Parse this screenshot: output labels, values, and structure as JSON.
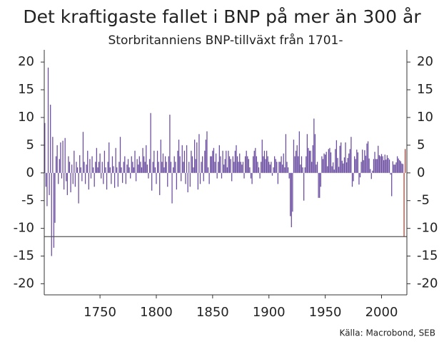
{
  "chart_data": {
    "type": "bar",
    "title": "Det kraftigaste fallet i BNP på mer än 300 år",
    "subtitle": "Storbritanniens BNP-tillväxt från 1701-",
    "source": "Källa: Macrobond, SEB",
    "series": [
      {
        "color": "#6a4ca0",
        "x": [
          1701,
          1702,
          1703,
          1704,
          1705,
          1706,
          1707,
          1708,
          1709,
          1710,
          1711,
          1712,
          1713,
          1714,
          1715,
          1716,
          1717,
          1718,
          1719,
          1720,
          1721,
          1722,
          1723,
          1724,
          1725,
          1726,
          1727,
          1728,
          1729,
          1730,
          1731,
          1732,
          1733,
          1734,
          1735,
          1736,
          1737,
          1738,
          1739,
          1740,
          1741,
          1742,
          1743,
          1744,
          1745,
          1746,
          1747,
          1748,
          1749,
          1750,
          1751,
          1752,
          1753,
          1754,
          1755,
          1756,
          1757,
          1758,
          1759,
          1760,
          1761,
          1762,
          1763,
          1764,
          1765,
          1766,
          1767,
          1768,
          1769,
          1770,
          1771,
          1772,
          1773,
          1774,
          1775,
          1776,
          1777,
          1778,
          1779,
          1780,
          1781,
          1782,
          1783,
          1784,
          1785,
          1786,
          1787,
          1788,
          1789,
          1790,
          1791,
          1792,
          1793,
          1794,
          1795,
          1796,
          1797,
          1798,
          1799,
          1800,
          1801,
          1802,
          1803,
          1804,
          1805,
          1806,
          1807,
          1808,
          1809,
          1810,
          1811,
          1812,
          1813,
          1814,
          1815,
          1816,
          1817,
          1818,
          1819,
          1820,
          1821,
          1822,
          1823,
          1824,
          1825,
          1826,
          1827,
          1828,
          1829,
          1830,
          1831,
          1832,
          1833,
          1834,
          1835,
          1836,
          1837,
          1838,
          1839,
          1840,
          1841,
          1842,
          1843,
          1844,
          1845,
          1846,
          1847,
          1848,
          1849,
          1850,
          1851,
          1852,
          1853,
          1854,
          1855,
          1856,
          1857,
          1858,
          1859,
          1860,
          1861,
          1862,
          1863,
          1864,
          1865,
          1866,
          1867,
          1868,
          1869,
          1870,
          1871,
          1872,
          1873,
          1874,
          1875,
          1876,
          1877,
          1878,
          1879,
          1880,
          1881,
          1882,
          1883,
          1884,
          1885,
          1886,
          1887,
          1888,
          1889,
          1890,
          1891,
          1892,
          1893,
          1894,
          1895,
          1896,
          1897,
          1898,
          1899,
          1900,
          1901,
          1902,
          1903,
          1904,
          1905,
          1906,
          1907,
          1908,
          1909,
          1910,
          1911,
          1912,
          1913,
          1914,
          1915,
          1916,
          1917,
          1918,
          1919,
          1920,
          1921,
          1922,
          1923,
          1924,
          1925,
          1926,
          1927,
          1928,
          1929,
          1930,
          1931,
          1932,
          1933,
          1934,
          1935,
          1936,
          1937,
          1938,
          1939,
          1940,
          1941,
          1942,
          1943,
          1944,
          1945,
          1946,
          1947,
          1948,
          1949,
          1950,
          1951,
          1952,
          1953,
          1954,
          1955,
          1956,
          1957,
          1958,
          1959,
          1960,
          1961,
          1962,
          1963,
          1964,
          1965,
          1966,
          1967,
          1968,
          1969,
          1970,
          1971,
          1972,
          1973,
          1974,
          1975,
          1976,
          1977,
          1978,
          1979,
          1980,
          1981,
          1982,
          1983,
          1984,
          1985,
          1986,
          1987,
          1988,
          1989,
          1990,
          1991,
          1992,
          1993,
          1994,
          1995,
          1996,
          1997,
          1998,
          1999,
          2000,
          2001,
          2002,
          2003,
          2004,
          2005,
          2006,
          2007,
          2008,
          2009,
          2010,
          2011,
          2012,
          2013,
          2014,
          2015,
          2016,
          2017,
          2018,
          2019
        ],
        "values": [
          9,
          -2.5,
          -6,
          19,
          -4,
          12.3,
          -15,
          6.5,
          -13.5,
          -9,
          3,
          5,
          -2,
          2.5,
          5.5,
          -1,
          5.8,
          -3,
          6.3,
          -1.5,
          -4,
          3,
          2,
          -3.5,
          1.5,
          -2,
          4,
          -2.5,
          2,
          1,
          -5.5,
          3.2,
          1,
          -1.5,
          7.4,
          2,
          -2,
          1.5,
          4,
          -3,
          2.5,
          -1,
          3,
          1,
          -2.5,
          2,
          4.5,
          1,
          2,
          3.5,
          -1,
          2,
          -2,
          4,
          1,
          -3,
          2,
          5.5,
          1,
          -2,
          3,
          1.2,
          -2.7,
          4.5,
          1,
          -2.5,
          2,
          6.5,
          1,
          -1.8,
          2,
          3,
          -2,
          1.5,
          2.5,
          1,
          -1,
          3,
          2,
          1,
          4,
          -1.5,
          2.5,
          1.5,
          3,
          2,
          1,
          4.5,
          3,
          2,
          5,
          1.5,
          -1,
          2.5,
          10.8,
          -3.2,
          2,
          4,
          1,
          -2,
          4,
          2,
          -4,
          6,
          2,
          3.5,
          1,
          3,
          2,
          -2.5,
          3,
          10.5,
          2,
          -5.5,
          1,
          3,
          2,
          -3,
          4,
          6,
          3,
          -1.5,
          5,
          2,
          4,
          -2,
          5,
          -3.5,
          2,
          -2.5,
          4,
          3,
          1,
          6,
          2.5,
          5.5,
          -3,
          7,
          -2,
          2,
          3,
          -1.5,
          4,
          6,
          7.5,
          1,
          -2,
          3,
          3,
          4,
          4.5,
          2,
          3.5,
          -1,
          2,
          5,
          3,
          -1,
          4,
          1.5,
          2.5,
          4,
          1,
          4,
          3,
          2.5,
          -1.5,
          3,
          2,
          4,
          5,
          3,
          2,
          3.5,
          2,
          1.5,
          2,
          -1,
          3,
          4,
          3,
          2.5,
          1,
          -1,
          -2,
          3,
          4,
          4.5,
          3,
          2,
          1,
          -1,
          2,
          6,
          3,
          4,
          2.5,
          4,
          3,
          2,
          1.5,
          2,
          -0.5,
          1,
          3,
          2.5,
          2,
          -2,
          2,
          2,
          3,
          1.5,
          3.5,
          1,
          7,
          2,
          1,
          -1,
          -7.8,
          -9.8,
          -7,
          6,
          3,
          4,
          5,
          3,
          7.5,
          1.5,
          3,
          1,
          -5,
          1,
          3,
          7,
          4.5,
          4,
          4,
          2,
          5,
          9.8,
          7,
          1.5,
          2,
          -4.5,
          -4.5,
          -2.5,
          3,
          2.5,
          3.5,
          3.3,
          3.8,
          1.2,
          4.3,
          4.5,
          3.7,
          1.2,
          1.9,
          0.6,
          4.3,
          5.9,
          2.7,
          1.1,
          4.9,
          5.5,
          2.2,
          1.7,
          2.8,
          5.5,
          1.9,
          2.7,
          3.5,
          4.3,
          6.5,
          -2.5,
          -1.5,
          3,
          2.5,
          4.2,
          3.7,
          -2.1,
          -0.8,
          2,
          4.2,
          2.3,
          4.1,
          3.1,
          5.3,
          5.7,
          2.6,
          0.7,
          -1.1,
          0.4,
          2.5,
          3.8,
          2.5,
          2.5,
          4.9,
          3.2,
          3,
          3.4,
          3,
          2.3,
          3.3,
          2.4,
          3.2,
          2.7,
          2.4,
          -0.3,
          -4.2,
          2.1,
          1.5,
          1.5,
          1.9,
          3,
          2.6,
          2.3,
          2.1,
          1.7,
          1.6
        ]
      },
      {
        "color": "#c0392b",
        "x": [
          2020,
          2021
        ],
        "values": [
          -11.5,
          4.3
        ]
      }
    ],
    "hline": -11.5,
    "xlim": [
      1700.5,
      2022.5
    ],
    "xticks": [
      1750,
      1800,
      1850,
      1900,
      1950,
      2000
    ],
    "ylim": [
      -22,
      22.2
    ],
    "yticks": [
      20,
      15,
      10,
      5,
      0,
      -5,
      -10,
      -15,
      -20
    ]
  }
}
